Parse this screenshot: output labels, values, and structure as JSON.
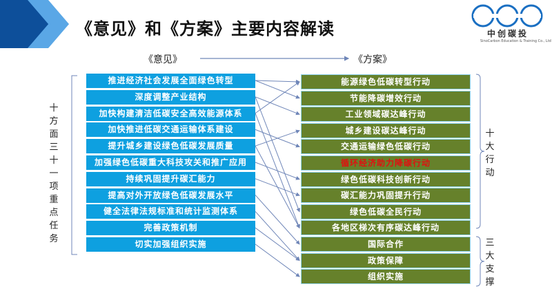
{
  "title": "《意见》和《方案》主要内容解读",
  "logo": {
    "cn": "中创碳投",
    "en": "SinoCarbon Innovation & Investment",
    "en_sub": "SinoCarbon Education & Training Co., Ltd"
  },
  "headers": {
    "left": "《意见》",
    "right": "《方案》"
  },
  "left_group_label": "十方面三十一项重点任务",
  "right_group_labels": [
    "十大行动",
    "三大支撑"
  ],
  "left_items": [
    "推进经济社会发展全面绿色转型",
    "深度调整产业结构",
    "加快构建清洁低碳安全高效能源体系",
    "加快推进低碳交通运输体系建设",
    "提升城乡建设绿色低碳发展质量",
    "加强绿色低碳重大科技攻关和推广应用",
    "持续巩固提升碳汇能力",
    "提高对外开放绿色低碳发展水平",
    "健全法律法规标准和统计监测体系",
    "完善政策机制",
    "切实加强组织实施"
  ],
  "right_items": [
    "能源绿色低碳转型行动",
    "节能降碳增效行动",
    "工业领域碳达峰行动",
    "城乡建设碳达峰行动",
    "交通运输绿色低碳行动",
    "循环经济助力降碳行动",
    "绿色低碳科技创新行动",
    "碳汇能力巩固提升行动",
    "绿色低碳全民行动",
    "各地区梯次有序碳达峰行动",
    "国际合作",
    "政策保障",
    "组织实施"
  ],
  "highlight_index": 5,
  "colors": {
    "left_box": "#0ea0e0",
    "right_box": "#66812b",
    "highlight_text": "#e01010",
    "arrow": "#6f86b8"
  }
}
